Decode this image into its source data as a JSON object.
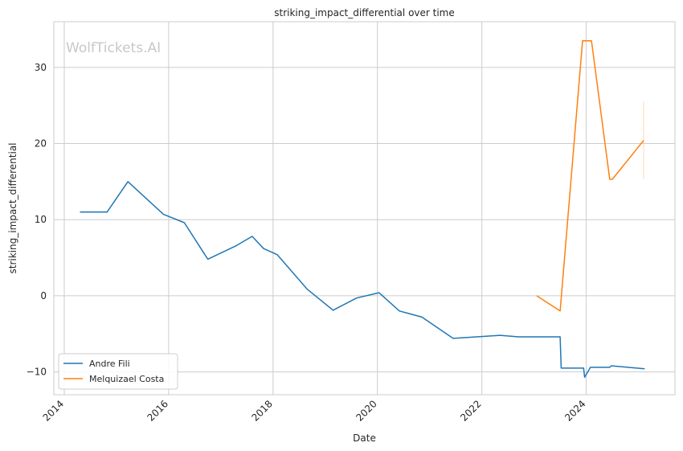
{
  "chart_data": {
    "type": "line",
    "title": "striking_impact_differential over time",
    "xlabel": "Date",
    "ylabel": "striking_impact_differential",
    "watermark": "WolfTickets.AI",
    "xlim": [
      2013.8,
      2025.7
    ],
    "ylim": [
      -13,
      36
    ],
    "x_ticks": [
      2014,
      2016,
      2018,
      2020,
      2022,
      2024
    ],
    "y_ticks": [
      -10,
      0,
      10,
      20,
      30
    ],
    "grid": true,
    "legend_position": "lower-left",
    "series": [
      {
        "name": "Andre Fili",
        "color": "#1f77b4",
        "x": [
          2014.3,
          2014.82,
          2015.22,
          2015.9,
          2016.3,
          2016.75,
          2017.3,
          2017.6,
          2017.82,
          2018.08,
          2018.65,
          2019.15,
          2019.6,
          2020.03,
          2020.42,
          2020.85,
          2021.45,
          2022.35,
          2022.7,
          2023.5,
          2023.52,
          2023.95,
          2023.97,
          2024.08,
          2024.45,
          2024.48,
          2025.12
        ],
        "y": [
          11.0,
          11.0,
          15.0,
          10.7,
          9.6,
          4.8,
          6.6,
          7.8,
          6.2,
          5.4,
          0.9,
          -1.9,
          -0.3,
          0.4,
          -2.0,
          -2.8,
          -5.6,
          -5.2,
          -5.4,
          -5.4,
          -9.5,
          -9.5,
          -10.7,
          -9.4,
          -9.4,
          -9.2,
          -9.6
        ]
      },
      {
        "name": "Melquizael Costa",
        "color": "#ff7f0e",
        "x": [
          2023.05,
          2023.5,
          2023.93,
          2024.1,
          2024.45,
          2024.5,
          2025.1
        ],
        "y": [
          0.0,
          -2.0,
          33.5,
          33.5,
          15.3,
          15.3,
          20.4
        ]
      }
    ],
    "error_bar": {
      "series": "Melquizael Costa",
      "x": 2025.1,
      "low": 15.3,
      "high": 25.5
    }
  }
}
